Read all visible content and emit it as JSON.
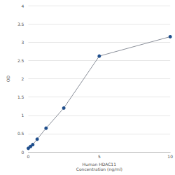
{
  "chart_data": {
    "type": "line",
    "x_label": "Human HDAC11\nConcentration (ng/ml)",
    "y_label": "OD",
    "x": [
      0,
      0.156,
      0.312,
      0.625,
      1.25,
      2.5,
      5,
      10
    ],
    "values": [
      0.1,
      0.15,
      0.2,
      0.35,
      0.65,
      1.2,
      2.62,
      3.15
    ],
    "color": "#1f4e8c",
    "marker": "circle",
    "xlim": [
      0,
      10
    ],
    "xticks": [
      0,
      5,
      10
    ],
    "ylim": [
      0,
      4
    ],
    "yticks": [
      0,
      0.5,
      1,
      1.5,
      2,
      2.5,
      3,
      3.5,
      4
    ],
    "grid": true
  }
}
